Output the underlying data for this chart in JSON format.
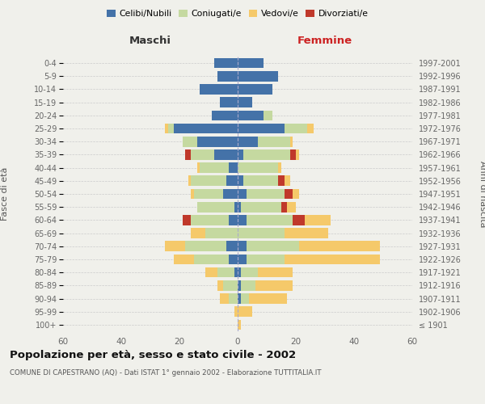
{
  "age_groups": [
    "100+",
    "95-99",
    "90-94",
    "85-89",
    "80-84",
    "75-79",
    "70-74",
    "65-69",
    "60-64",
    "55-59",
    "50-54",
    "45-49",
    "40-44",
    "35-39",
    "30-34",
    "25-29",
    "20-24",
    "15-19",
    "10-14",
    "5-9",
    "0-4"
  ],
  "birth_years": [
    "≤ 1901",
    "1902-1906",
    "1907-1911",
    "1912-1916",
    "1917-1921",
    "1922-1926",
    "1927-1931",
    "1932-1936",
    "1937-1941",
    "1942-1946",
    "1947-1951",
    "1952-1956",
    "1957-1961",
    "1962-1966",
    "1967-1971",
    "1972-1976",
    "1977-1981",
    "1982-1986",
    "1987-1991",
    "1992-1996",
    "1997-2001"
  ],
  "maschi": {
    "celibi": [
      0,
      0,
      0,
      0,
      1,
      3,
      4,
      0,
      3,
      1,
      5,
      4,
      3,
      8,
      14,
      22,
      9,
      6,
      13,
      7,
      8
    ],
    "coniugati": [
      0,
      0,
      3,
      5,
      6,
      12,
      14,
      11,
      13,
      13,
      10,
      12,
      10,
      8,
      5,
      2,
      0,
      0,
      0,
      0,
      0
    ],
    "vedovi": [
      0,
      1,
      3,
      2,
      4,
      7,
      7,
      5,
      0,
      0,
      1,
      1,
      1,
      0,
      0,
      1,
      0,
      0,
      0,
      0,
      0
    ],
    "divorziati": [
      0,
      0,
      0,
      0,
      0,
      0,
      0,
      0,
      3,
      0,
      0,
      0,
      0,
      2,
      0,
      0,
      0,
      0,
      0,
      0,
      0
    ]
  },
  "femmine": {
    "nubili": [
      0,
      0,
      1,
      1,
      1,
      3,
      3,
      0,
      3,
      1,
      3,
      2,
      0,
      2,
      7,
      16,
      9,
      5,
      12,
      14,
      9
    ],
    "coniugate": [
      0,
      0,
      3,
      5,
      6,
      13,
      18,
      16,
      16,
      14,
      13,
      12,
      14,
      16,
      11,
      8,
      3,
      0,
      0,
      0,
      0
    ],
    "vedove": [
      1,
      5,
      13,
      13,
      12,
      33,
      28,
      15,
      9,
      3,
      2,
      2,
      1,
      1,
      1,
      2,
      0,
      0,
      0,
      0,
      0
    ],
    "divorziate": [
      0,
      0,
      0,
      0,
      0,
      0,
      0,
      0,
      4,
      2,
      3,
      2,
      0,
      2,
      0,
      0,
      0,
      0,
      0,
      0,
      0
    ]
  },
  "colors": {
    "celibi": "#4472a8",
    "coniugati": "#c5d9a0",
    "vedovi": "#f5c96a",
    "divorziati": "#c0392b"
  },
  "title": "Popolazione per età, sesso e stato civile - 2002",
  "subtitle": "COMUNE DI CAPESTRANO (AQ) - Dati ISTAT 1° gennaio 2002 - Elaborazione TUTTITALIA.IT",
  "xlabel_left": "Maschi",
  "xlabel_right": "Femmine",
  "ylabel_left": "Fasce di età",
  "ylabel_right": "Anni di nascita",
  "xlim": 60,
  "background_color": "#f0f0eb",
  "bar_height": 0.78
}
